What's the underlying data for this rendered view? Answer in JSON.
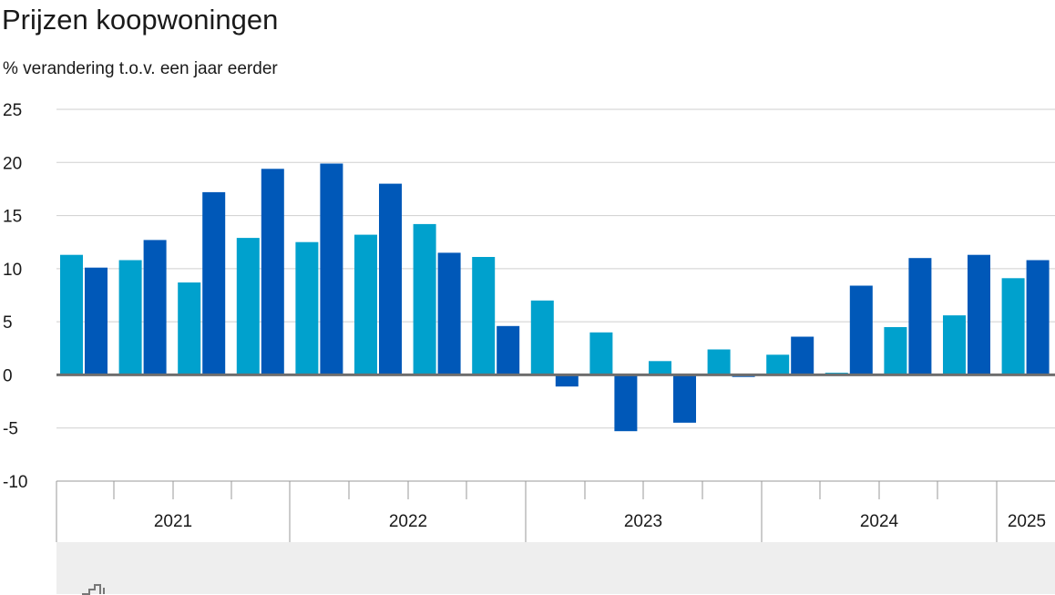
{
  "chart_data": {
    "type": "bar",
    "title": "Prijzen koopwoningen",
    "subtitle": "% verandering t.o.v. een jaar eerder",
    "ylim": [
      -10,
      25
    ],
    "y_ticks": [
      "25",
      "20",
      "15",
      "10",
      "5",
      "0",
      "-5",
      "-10"
    ],
    "grid": true,
    "years": [
      "2021",
      "2022",
      "2023",
      "2024",
      "2025"
    ],
    "colors": {
      "light": "#00a1cd",
      "dark": "#0058b8"
    },
    "values": [
      11.3,
      10.1,
      10.8,
      12.7,
      8.7,
      17.2,
      12.9,
      19.4,
      12.5,
      19.9,
      13.2,
      18.0,
      14.2,
      11.5,
      11.1,
      4.6,
      7.0,
      -1.1,
      4.0,
      -5.3,
      1.3,
      -4.5,
      2.4,
      -0.2,
      1.9,
      3.6,
      0.2,
      8.4,
      4.5,
      11.0,
      5.6,
      11.3,
      9.1,
      10.8
    ]
  }
}
